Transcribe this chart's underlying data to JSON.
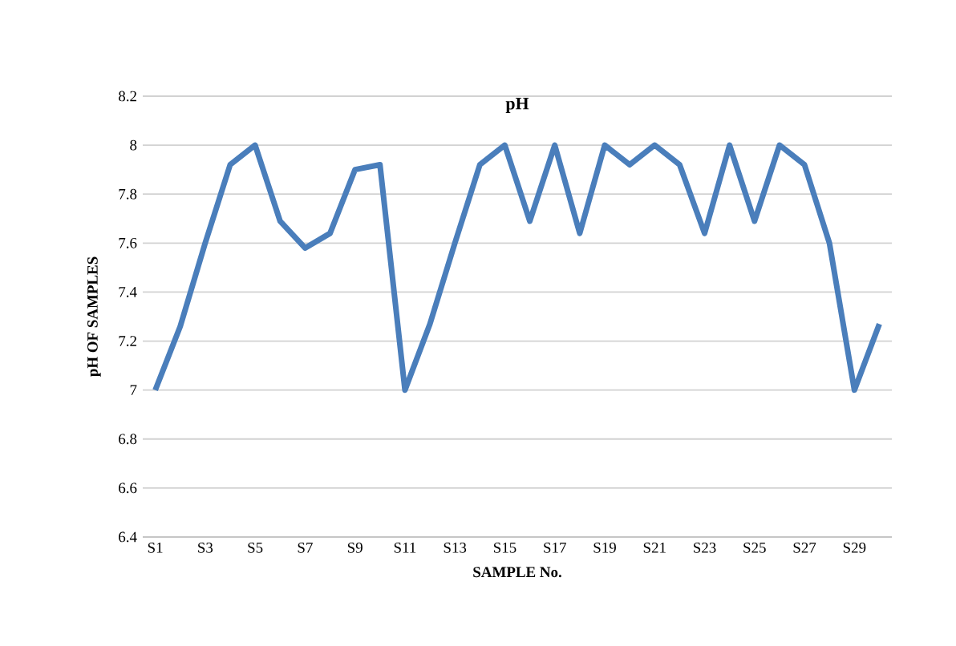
{
  "chart_data": {
    "type": "line",
    "title": "pH",
    "xlabel": "SAMPLE No.",
    "ylabel": "pH OF SAMPLES",
    "categories": [
      "S1",
      null,
      "S3",
      null,
      "S5",
      null,
      "S7",
      null,
      "S9",
      null,
      "S11",
      null,
      "S13",
      null,
      "S15",
      null,
      "S17",
      null,
      "S19",
      null,
      "S21",
      null,
      "S23",
      null,
      "S25",
      null,
      "S27",
      null,
      "S29",
      null
    ],
    "series": [
      {
        "color": "#4a7ebb",
        "values": [
          7.0,
          7.26,
          7.6,
          7.92,
          8.0,
          7.69,
          7.58,
          7.64,
          7.9,
          7.92,
          7.0,
          7.27,
          7.6,
          7.92,
          8.0,
          7.69,
          8.0,
          7.64,
          8.0,
          7.92,
          8.0,
          7.92,
          7.64,
          8.0,
          7.69,
          8.0,
          7.92,
          7.6,
          7.0,
          7.27
        ]
      }
    ],
    "ylim": [
      6.4,
      8.2
    ],
    "yticks": [
      6.4,
      6.6,
      6.8,
      7,
      7.2,
      7.4,
      7.6,
      7.8,
      8,
      8.2
    ],
    "grid": "y",
    "marker": "none",
    "line_style": "solid"
  }
}
